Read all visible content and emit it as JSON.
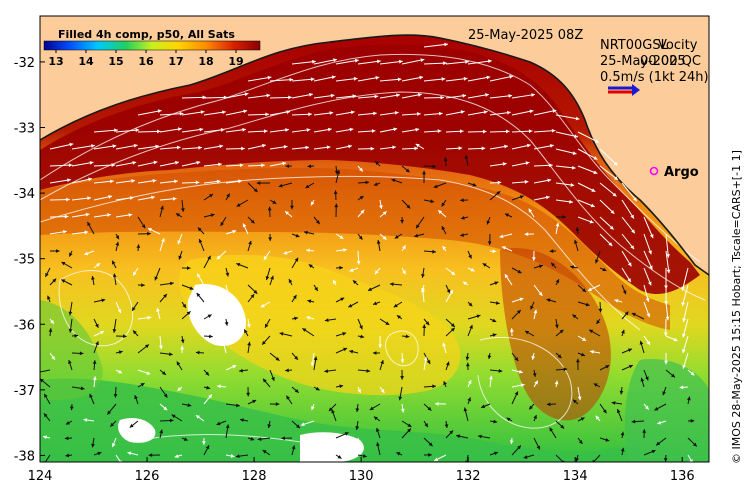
{
  "colorbar": {
    "title": "Filled 4h comp, p50, All Sats",
    "ticks": [
      "13",
      "14",
      "15",
      "16",
      "17",
      "18",
      "19"
    ],
    "min": 12.6,
    "max": 19.8,
    "colors": [
      "#000090",
      "#0044ff",
      "#00c8ff",
      "#20e060",
      "#c0f020",
      "#ffd400",
      "#ff8c00",
      "#e03000",
      "#b00000",
      "#8c0000"
    ]
  },
  "header": {
    "date": "25-May-2025 08Z",
    "velocity_title_a": "NRT00GSL",
    "velocity_title_b": "Vocity",
    "velocity_date_a": "25-May-2025",
    "velocity_date_b": "00:00 QC",
    "velocity_scale": "0.5m/s (1kt 24h)",
    "argo_label": "Argo"
  },
  "axes": {
    "x_ticks": [
      "124",
      "126",
      "128",
      "130",
      "132",
      "134",
      "136"
    ],
    "y_ticks": [
      "-32",
      "-33",
      "-34",
      "-35",
      "-36",
      "-37",
      "-38"
    ],
    "xlim": [
      124,
      136.5
    ],
    "ylim": [
      -38.1,
      -31.3
    ]
  },
  "credit": "© IMOS 28-May-2025 15:15 Hobart; Tscale=CARS+[-1 1]",
  "colors": {
    "land": "#fccc9a",
    "coast": "#1a1a1a",
    "argo": "#ff00ff",
    "arrow_dark": "#111111",
    "arrow_light": "#ffffff"
  }
}
